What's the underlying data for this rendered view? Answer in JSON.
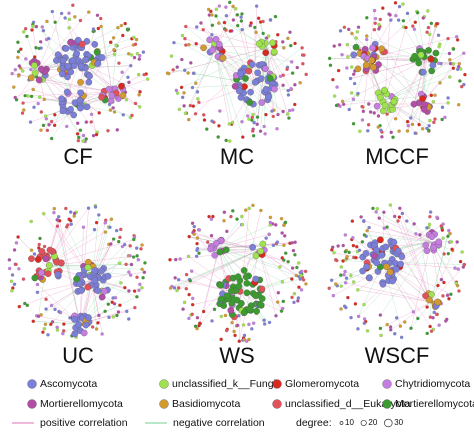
{
  "panels": [
    {
      "label": "CF"
    },
    {
      "label": "MC"
    },
    {
      "label": "MCCF"
    },
    {
      "label": "UC"
    },
    {
      "label": "WS"
    },
    {
      "label": "WSCF"
    }
  ],
  "legend": {
    "taxa": [
      {
        "name": "Ascomycota",
        "color": "#7c7fd8"
      },
      {
        "name": "unclassified_k__Fungi",
        "color": "#9ee24c"
      },
      {
        "name": "Glomeromycota",
        "color": "#d9291f"
      },
      {
        "name": "Chytridiomycota",
        "color": "#c57de0"
      },
      {
        "name": "Mortierellomycota",
        "color": "#b24ea6"
      },
      {
        "name": "Basidiomycota",
        "color": "#d39a2f"
      },
      {
        "name": "unclassified_d__Eukaryota",
        "color": "#e3505a"
      },
      {
        "name": "Mortierellomycota",
        "color": "#3b9a30"
      }
    ],
    "edges": [
      {
        "name": "positive correlation",
        "color": "#e78fc6"
      },
      {
        "name": "negative correlation",
        "color": "#8fd9a9"
      }
    ],
    "degree": {
      "title": "degree:",
      "sizes": [
        "10",
        "20",
        "30"
      ]
    }
  }
}
